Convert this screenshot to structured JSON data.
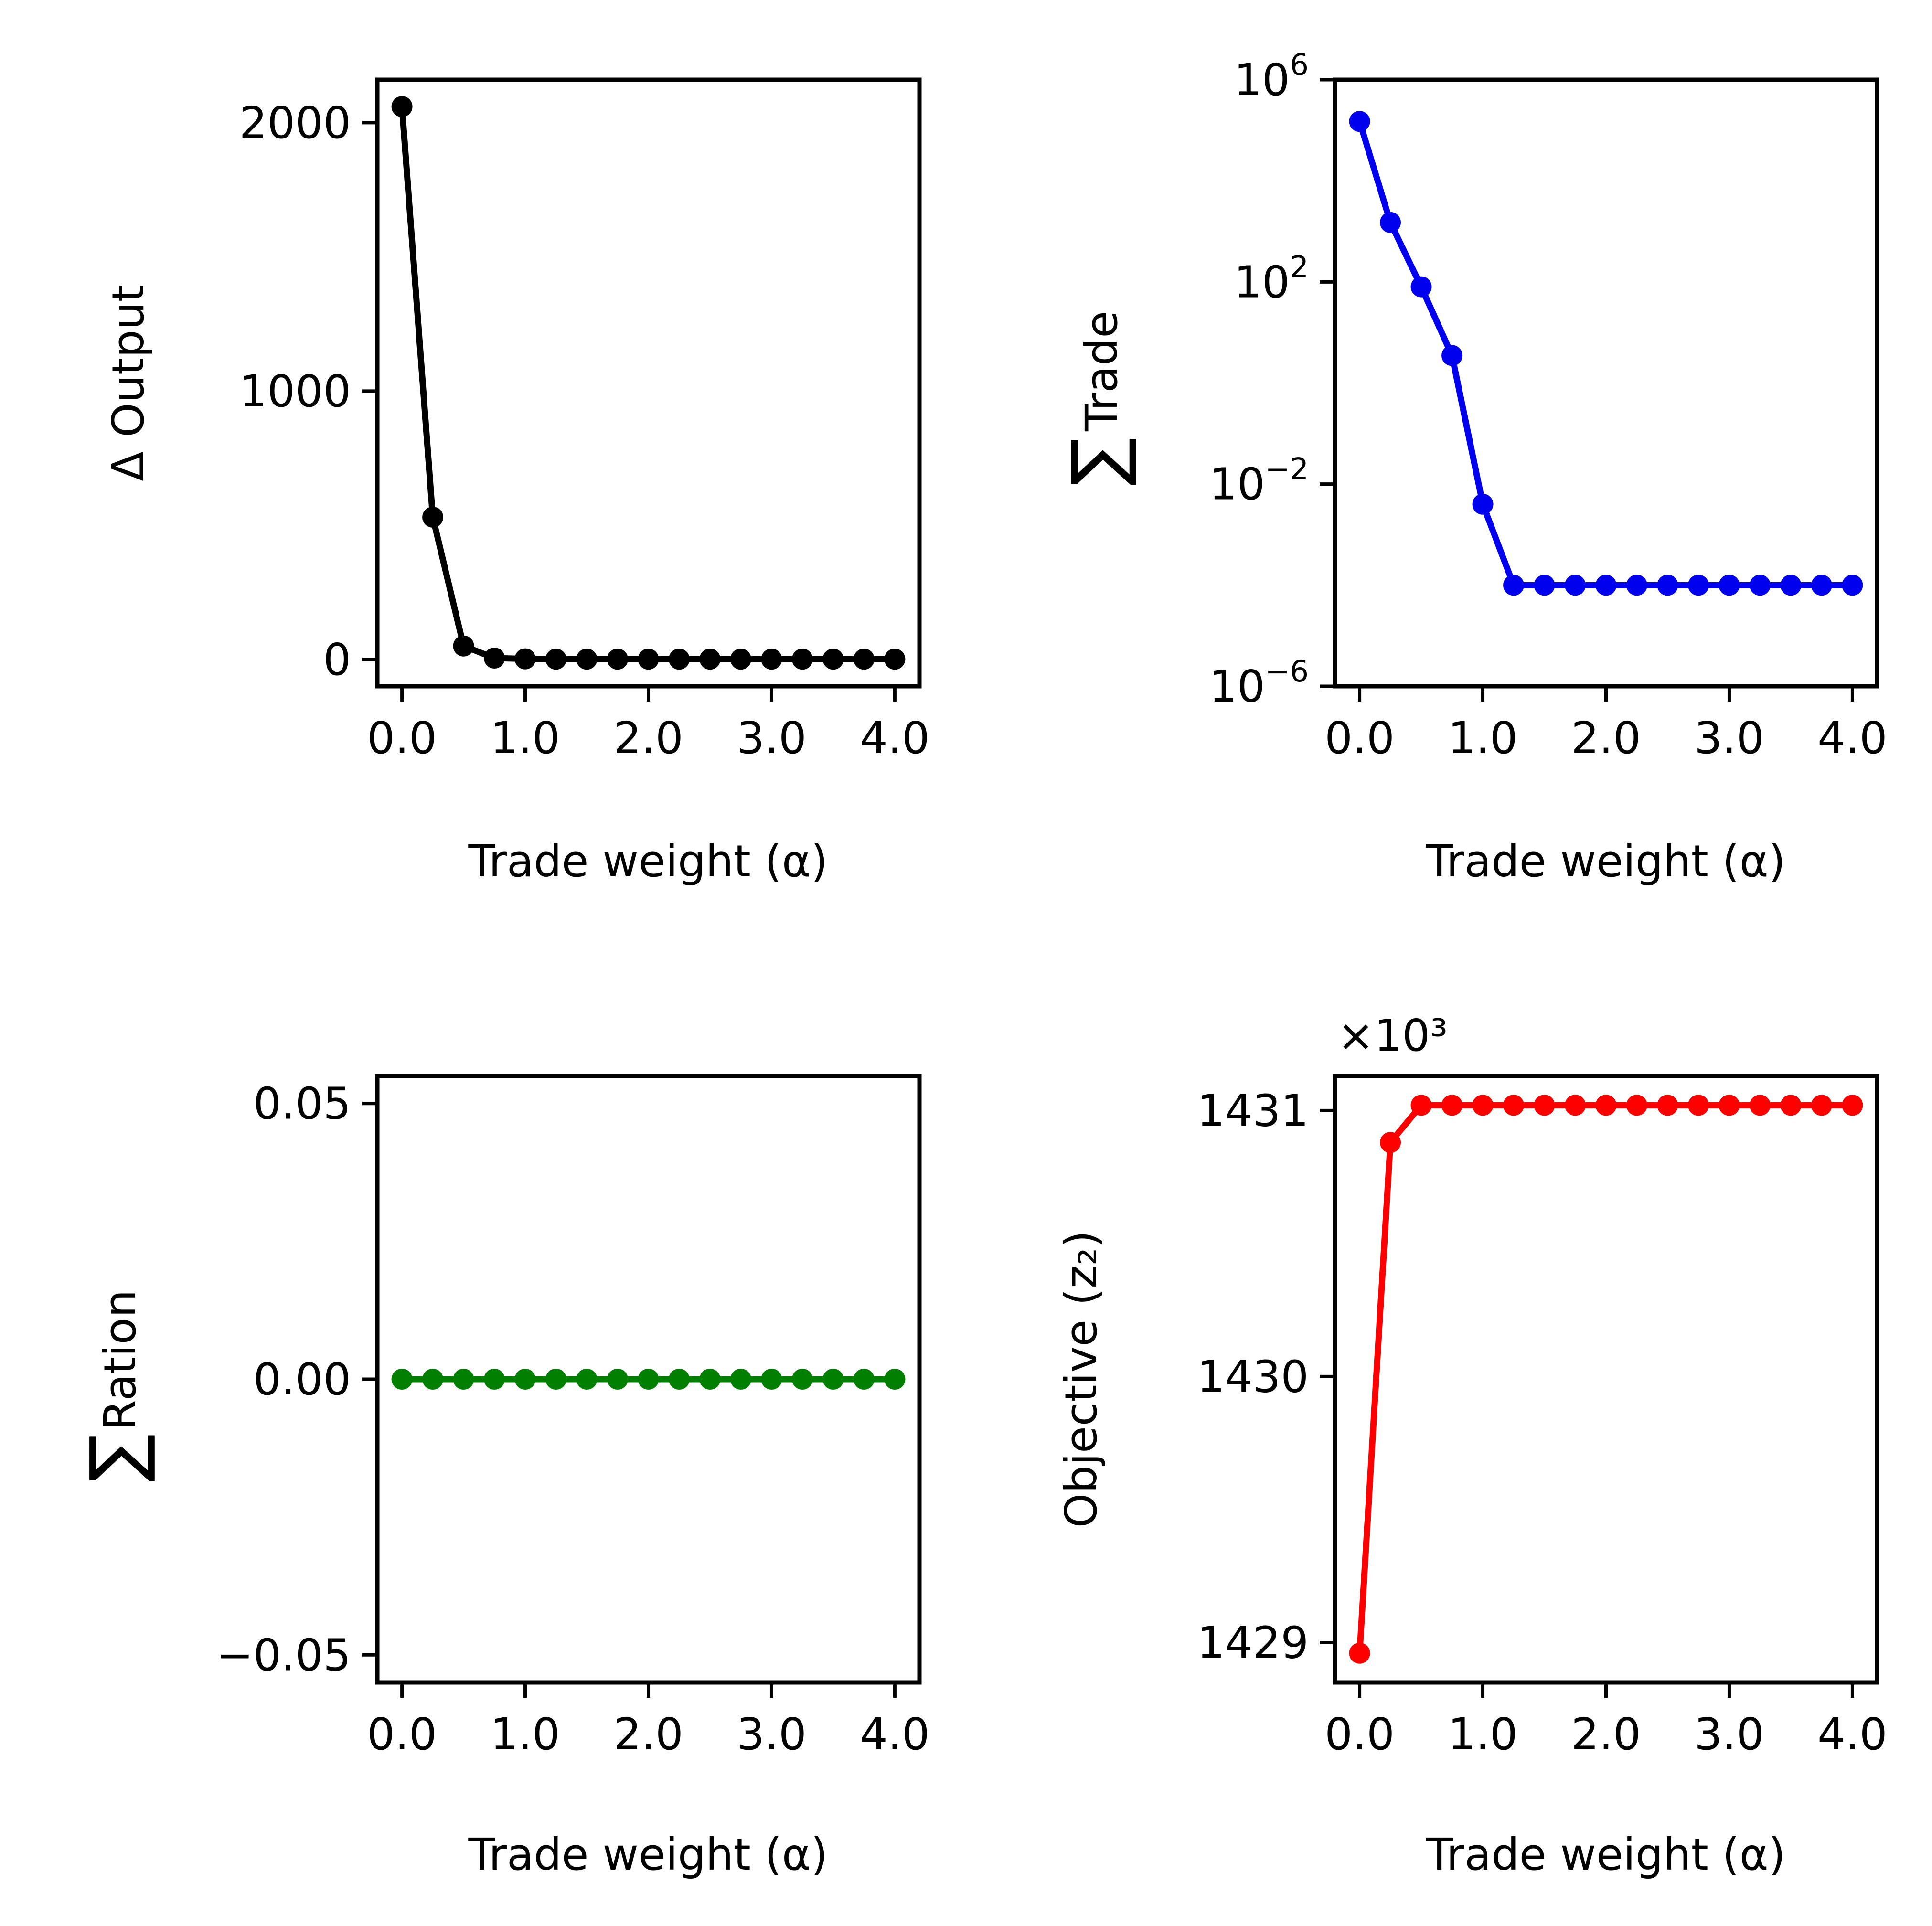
{
  "chart_data": [
    {
      "id": "output",
      "type": "line",
      "xlabel": "Trade weight (α)",
      "ylabel": "Δ Output",
      "x": [
        0,
        0.25,
        0.5,
        0.75,
        1.0,
        1.25,
        1.5,
        1.75,
        2.0,
        2.25,
        2.5,
        2.75,
        3.0,
        3.25,
        3.5,
        3.75,
        4.0
      ],
      "series": [
        {
          "color": "#000000",
          "values": [
            2060,
            530,
            50,
            5,
            2,
            1,
            1,
            1,
            1,
            1,
            1,
            1,
            1,
            1,
            1,
            1,
            1
          ]
        }
      ],
      "xlim": [
        -0.2,
        4.2
      ],
      "ylim": [
        -100,
        2160
      ],
      "xticks": [
        0,
        1,
        2,
        3,
        4
      ],
      "xtick_labels": [
        "0.0",
        "1.0",
        "2.0",
        "3.0",
        "4.0"
      ],
      "yticks": [
        0,
        1000,
        2000
      ],
      "ytick_labels": [
        "0",
        "1000",
        "2000"
      ],
      "yscale": "linear",
      "grid": false
    },
    {
      "id": "trade",
      "type": "line",
      "xlabel": "Trade weight (α)",
      "ylabel_symbol": "∑",
      "ylabel": "Trade",
      "x": [
        0,
        0.25,
        0.5,
        0.75,
        1.0,
        1.25,
        1.5,
        1.75,
        2.0,
        2.25,
        2.5,
        2.75,
        3.0,
        3.25,
        3.5,
        3.75,
        4.0
      ],
      "series": [
        {
          "color": "#0000ee",
          "values": [
            150000,
            1500,
            80,
            3.5,
            0.004,
            0.0001,
            0.0001,
            0.0001,
            0.0001,
            0.0001,
            0.0001,
            0.0001,
            0.0001,
            0.0001,
            0.0001,
            0.0001,
            0.0001
          ]
        }
      ],
      "xlim": [
        -0.2,
        4.2
      ],
      "ylim": [
        1e-06,
        1000000
      ],
      "xticks": [
        0,
        1,
        2,
        3,
        4
      ],
      "xtick_labels": [
        "0.0",
        "1.0",
        "2.0",
        "3.0",
        "4.0"
      ],
      "yticks": [
        1e-06,
        0.01,
        100,
        1000000
      ],
      "ytick_labels": [
        {
          "base": "10",
          "exp": "−6"
        },
        {
          "base": "10",
          "exp": "−2"
        },
        {
          "base": "10",
          "exp": "2"
        },
        {
          "base": "10",
          "exp": "6"
        }
      ],
      "yscale": "log",
      "grid": false
    },
    {
      "id": "ration",
      "type": "line",
      "xlabel": "Trade weight (α)",
      "ylabel_symbol": "∑",
      "ylabel": "Ration",
      "x": [
        0,
        0.25,
        0.5,
        0.75,
        1.0,
        1.25,
        1.5,
        1.75,
        2.0,
        2.25,
        2.5,
        2.75,
        3.0,
        3.25,
        3.5,
        3.75,
        4.0
      ],
      "series": [
        {
          "color": "#007f00",
          "values": [
            0,
            0,
            0,
            0,
            0,
            0,
            0,
            0,
            0,
            0,
            0,
            0,
            0,
            0,
            0,
            0,
            0
          ]
        }
      ],
      "xlim": [
        -0.2,
        4.2
      ],
      "ylim": [
        -0.055,
        0.055
      ],
      "xticks": [
        0,
        1,
        2,
        3,
        4
      ],
      "xtick_labels": [
        "0.0",
        "1.0",
        "2.0",
        "3.0",
        "4.0"
      ],
      "yticks": [
        -0.05,
        0.0,
        0.05
      ],
      "ytick_labels": [
        "−0.05",
        "0.00",
        "0.05"
      ],
      "yscale": "linear",
      "grid": false
    },
    {
      "id": "objective",
      "type": "line",
      "xlabel": "Trade weight (α)",
      "ylabel": "Objective (z₂)",
      "offset_text": "×10³",
      "x": [
        0,
        0.25,
        0.5,
        0.75,
        1.0,
        1.25,
        1.5,
        1.75,
        2.0,
        2.25,
        2.5,
        2.75,
        3.0,
        3.25,
        3.5,
        3.75,
        4.0
      ],
      "series": [
        {
          "color": "#ff0000",
          "values": [
            1428.96,
            1430.88,
            1431.02,
            1431.02,
            1431.02,
            1431.02,
            1431.02,
            1431.02,
            1431.02,
            1431.02,
            1431.02,
            1431.02,
            1431.02,
            1431.02,
            1431.02,
            1431.02,
            1431.02
          ]
        }
      ],
      "xlim": [
        -0.2,
        4.2
      ],
      "ylim": [
        1428.85,
        1431.13
      ],
      "xticks": [
        0,
        1,
        2,
        3,
        4
      ],
      "xtick_labels": [
        "0.0",
        "1.0",
        "2.0",
        "3.0",
        "4.0"
      ],
      "yticks": [
        1429,
        1430,
        1431
      ],
      "ytick_labels": [
        "1429",
        "1430",
        "1431"
      ],
      "yscale": "linear",
      "grid": false
    }
  ]
}
